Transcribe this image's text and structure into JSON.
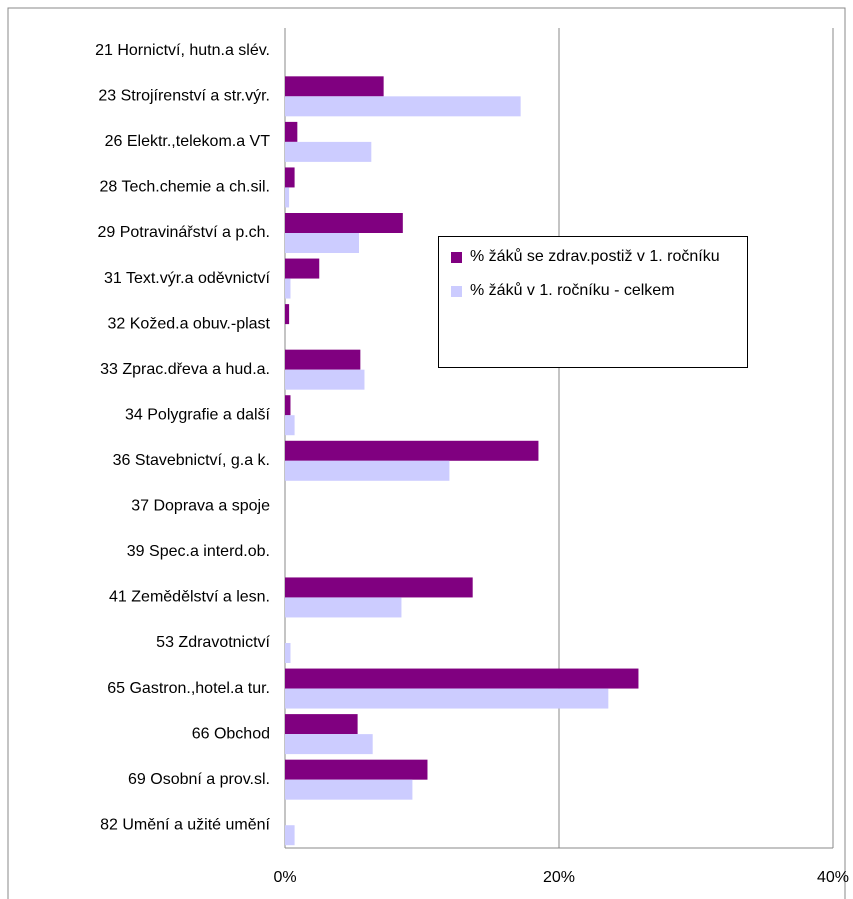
{
  "chart_data": {
    "type": "hbar",
    "categories": [
      "21 Hornictví, hutn.a slév.",
      "23 Strojírenství a str.výr.",
      "26 Elektr.,telekom.a VT",
      "28 Tech.chemie a ch.sil.",
      "29 Potravinářství a p.ch.",
      "31 Text.výr.a oděvnictví",
      "32 Kožed.a obuv.-plast",
      "33 Zprac.dřeva a hud.a.",
      "34 Polygrafie a další",
      "36 Stavebnictví, g.a k.",
      "37 Doprava a spoje",
      "39 Spec.a interd.ob.",
      "41 Zemědělství a lesn.",
      "53 Zdravotnictví",
      "65 Gastron.,hotel.a tur.",
      "66 Obchod",
      "69 Osobní a prov.sl.",
      "82 Umění a užité umění"
    ],
    "series": [
      {
        "name": "% žáků se zdrav.postiž v 1. ročníku",
        "color": "#800080",
        "values": [
          0,
          7.2,
          0.9,
          0.7,
          8.6,
          2.5,
          0.3,
          5.5,
          0.4,
          18.5,
          0,
          0,
          13.7,
          0,
          25.8,
          5.3,
          10.4,
          0
        ]
      },
      {
        "name": "% žáků v 1. ročníku - celkem",
        "color": "#ccccff",
        "values": [
          0,
          17.2,
          6.3,
          0.3,
          5.4,
          0.4,
          0,
          5.8,
          0.7,
          12.0,
          0,
          0,
          8.5,
          0.4,
          23.6,
          6.4,
          9.3,
          0.7
        ]
      }
    ],
    "xlim": [
      0,
      40
    ],
    "xticks": [
      {
        "value": 0,
        "label": "0%"
      },
      {
        "value": 20,
        "label": "20%"
      },
      {
        "value": 40,
        "label": "40%"
      }
    ],
    "grid": true,
    "legend": "right"
  }
}
